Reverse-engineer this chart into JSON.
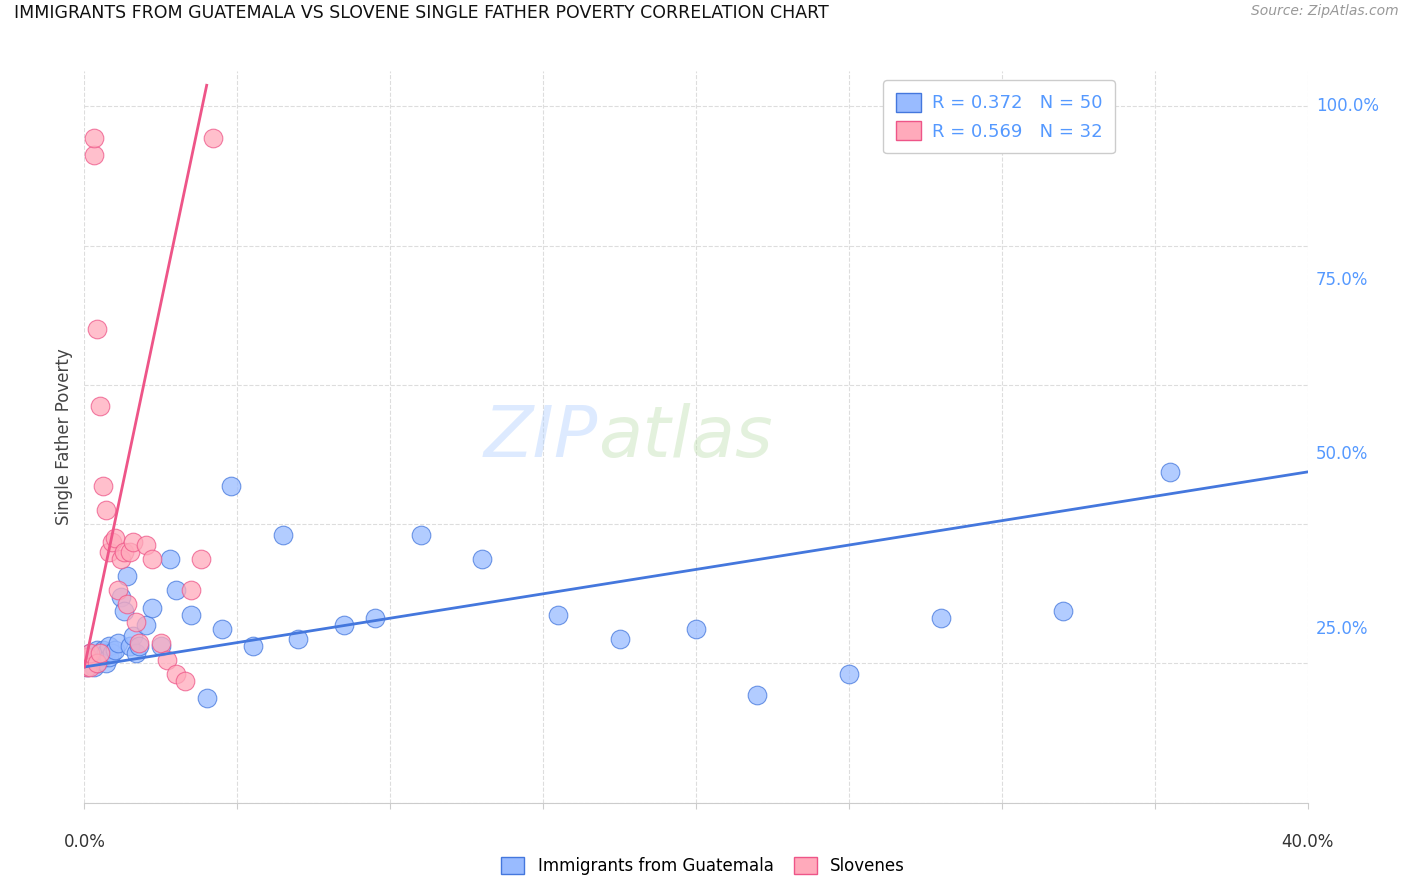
{
  "title": "IMMIGRANTS FROM GUATEMALA VS SLOVENE SINGLE FATHER POVERTY CORRELATION CHART",
  "source": "Source: ZipAtlas.com",
  "ylabel": "Single Father Poverty",
  "color_blue": "#99BBFF",
  "color_pink": "#FFAABB",
  "color_blue_line": "#4477DD",
  "color_pink_line": "#EE5588",
  "watermark_zip": "ZIP",
  "watermark_atlas": "atlas",
  "xmin": 0.0,
  "xmax": 0.4,
  "ymin": 0.0,
  "ymax": 1.05,
  "ytick_vals": [
    0.0,
    0.25,
    0.5,
    0.75,
    1.0
  ],
  "ytick_labels": [
    "",
    "25.0%",
    "50.0%",
    "75.0%",
    "100.0%"
  ],
  "xtick_labels_show": [
    "0.0%",
    "40.0%"
  ],
  "blue_line_x": [
    0.0,
    0.4
  ],
  "blue_line_y": [
    0.195,
    0.475
  ],
  "pink_line_x": [
    0.0,
    0.04
  ],
  "pink_line_y": [
    0.195,
    1.03
  ],
  "blue_points_x": [
    0.001,
    0.001,
    0.002,
    0.002,
    0.003,
    0.003,
    0.004,
    0.004,
    0.005,
    0.005,
    0.006,
    0.006,
    0.007,
    0.007,
    0.008,
    0.008,
    0.009,
    0.01,
    0.011,
    0.012,
    0.013,
    0.014,
    0.015,
    0.016,
    0.017,
    0.018,
    0.02,
    0.022,
    0.025,
    0.028,
    0.03,
    0.035,
    0.04,
    0.045,
    0.048,
    0.055,
    0.065,
    0.07,
    0.085,
    0.095,
    0.11,
    0.13,
    0.155,
    0.175,
    0.2,
    0.22,
    0.25,
    0.28,
    0.32,
    0.355
  ],
  "blue_points_y": [
    0.195,
    0.205,
    0.2,
    0.215,
    0.195,
    0.21,
    0.2,
    0.22,
    0.205,
    0.215,
    0.21,
    0.22,
    0.2,
    0.215,
    0.21,
    0.225,
    0.215,
    0.22,
    0.23,
    0.295,
    0.275,
    0.325,
    0.225,
    0.24,
    0.215,
    0.225,
    0.255,
    0.28,
    0.225,
    0.35,
    0.305,
    0.27,
    0.15,
    0.25,
    0.455,
    0.225,
    0.385,
    0.235,
    0.255,
    0.265,
    0.385,
    0.35,
    0.27,
    0.235,
    0.25,
    0.155,
    0.185,
    0.265,
    0.275,
    0.475
  ],
  "pink_points_x": [
    0.001,
    0.001,
    0.002,
    0.002,
    0.003,
    0.003,
    0.004,
    0.004,
    0.005,
    0.005,
    0.006,
    0.007,
    0.008,
    0.009,
    0.01,
    0.011,
    0.012,
    0.013,
    0.014,
    0.015,
    0.016,
    0.017,
    0.018,
    0.02,
    0.022,
    0.025,
    0.027,
    0.03,
    0.033,
    0.035,
    0.038,
    0.042
  ],
  "pink_points_y": [
    0.195,
    0.21,
    0.195,
    0.215,
    0.93,
    0.955,
    0.68,
    0.2,
    0.57,
    0.215,
    0.455,
    0.42,
    0.36,
    0.375,
    0.38,
    0.305,
    0.35,
    0.36,
    0.285,
    0.36,
    0.375,
    0.26,
    0.23,
    0.37,
    0.35,
    0.23,
    0.205,
    0.185,
    0.175,
    0.305,
    0.35,
    0.955
  ]
}
